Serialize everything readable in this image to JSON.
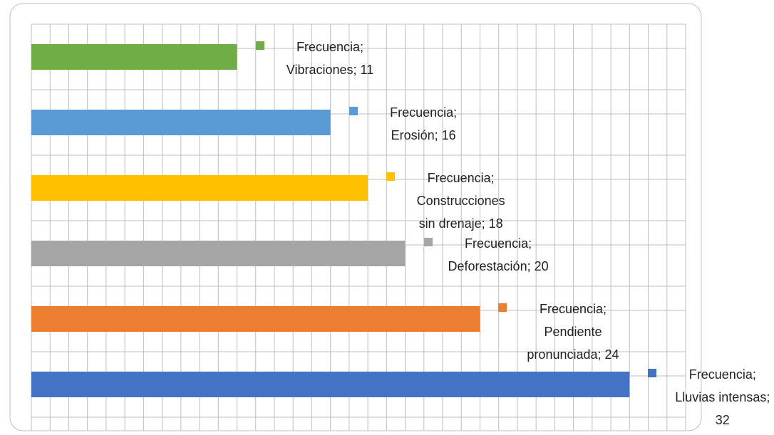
{
  "chart_data": {
    "type": "bar",
    "orientation": "horizontal",
    "values": [
      11,
      16,
      18,
      20,
      24,
      32
    ],
    "colors": [
      "#70ad47",
      "#5b9bd5",
      "#ffc000",
      "#a5a5a5",
      "#ed7d31",
      "#4472c4"
    ],
    "value_labels": [
      "Frecuencia; Vibraciones; 11",
      "Frecuencia; Erosión; 16",
      "Frecuencia; Construcciones sin drenaje; 18",
      "Frecuencia; Deforestación; 20",
      "Frecuencia; Pendiente pronunciada; 24",
      "Frecuencia; Lluvias intensas; 32"
    ],
    "xlim": [
      0,
      35
    ],
    "xticks": [
      0,
      1,
      2,
      3,
      4,
      5,
      6,
      7,
      8,
      9,
      10,
      11,
      12,
      13,
      14,
      15,
      16,
      17,
      18,
      19,
      20,
      21,
      22,
      23,
      24,
      25,
      26,
      27,
      28,
      29,
      30,
      31,
      32,
      33,
      34,
      35
    ],
    "grid": true
  }
}
